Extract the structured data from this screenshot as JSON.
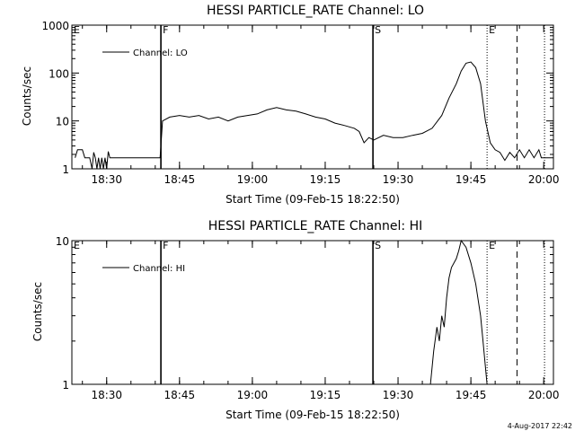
{
  "chart_data": [
    {
      "type": "line",
      "title": "HESSI PARTICLE_RATE Channel: LO",
      "xlabel": "Start Time (09-Feb-15 18:22:50)",
      "ylabel": "Counts/sec",
      "x_unit": "time (HH:MM, 09-Feb-15)",
      "xlim": [
        "18:22:50",
        "20:02:00"
      ],
      "ylim": [
        1,
        1000
      ],
      "yscale": "log",
      "x_ticks": [
        "18:30",
        "18:45",
        "19:00",
        "19:15",
        "19:30",
        "19:45",
        "20:00"
      ],
      "y_ticks": [
        {
          "value": 1,
          "label": "1"
        },
        {
          "value": 10,
          "label": "10"
        },
        {
          "value": 100,
          "label": "100"
        },
        {
          "value": 1000,
          "label": "1000"
        }
      ],
      "legend": {
        "position": "top-left",
        "entries": [
          "Channel: LO"
        ]
      },
      "markers": [
        {
          "label": "E",
          "time": "18:22:50",
          "style": "solid"
        },
        {
          "label": "F",
          "time": "18:41:10",
          "style": "solid"
        },
        {
          "label": "S",
          "time": "19:24:50",
          "style": "solid"
        },
        {
          "label": "E",
          "time": "19:48:20",
          "style": "dotted"
        },
        {
          "label": "",
          "time": "19:54:30",
          "style": "dashed"
        },
        {
          "label": "",
          "time": "20:00:10",
          "style": "dotted"
        }
      ],
      "series": [
        {
          "name": "Channel: LO",
          "points": [
            [
              "18:23:30",
              1.7
            ],
            [
              "18:24:00",
              2.5
            ],
            [
              "18:25:00",
              2.5
            ],
            [
              "18:25:30",
              1.7
            ],
            [
              "18:26:30",
              1.7
            ],
            [
              "18:27:00",
              1.0
            ],
            [
              "18:27:20",
              2.2
            ],
            [
              "18:27:40",
              1.7
            ],
            [
              "18:28:00",
              1.0
            ],
            [
              "18:28:20",
              1.7
            ],
            [
              "18:28:40",
              1.0
            ],
            [
              "18:29:00",
              1.7
            ],
            [
              "18:29:20",
              1.0
            ],
            [
              "18:29:40",
              1.7
            ],
            [
              "18:30:00",
              1.0
            ],
            [
              "18:30:20",
              2.3
            ],
            [
              "18:30:40",
              1.7
            ],
            [
              "18:41:00",
              1.7
            ],
            [
              "18:41:30",
              10
            ],
            [
              "18:43:00",
              12
            ],
            [
              "18:45:00",
              13
            ],
            [
              "18:47:00",
              12
            ],
            [
              "18:49:00",
              13
            ],
            [
              "18:51:00",
              11
            ],
            [
              "18:53:00",
              12
            ],
            [
              "18:55:00",
              10
            ],
            [
              "18:57:00",
              12
            ],
            [
              "18:59:00",
              13
            ],
            [
              "19:01:00",
              14
            ],
            [
              "19:03:00",
              17
            ],
            [
              "19:05:00",
              19
            ],
            [
              "19:07:00",
              17
            ],
            [
              "19:09:00",
              16
            ],
            [
              "19:11:00",
              14
            ],
            [
              "19:13:00",
              12
            ],
            [
              "19:15:00",
              11
            ],
            [
              "19:17:00",
              9
            ],
            [
              "19:19:00",
              8
            ],
            [
              "19:21:00",
              7
            ],
            [
              "19:22:00",
              6
            ],
            [
              "19:23:00",
              3.5
            ],
            [
              "19:24:00",
              4.5
            ],
            [
              "19:25:00",
              4
            ],
            [
              "19:27:00",
              5
            ],
            [
              "19:29:00",
              4.5
            ],
            [
              "19:31:00",
              4.5
            ],
            [
              "19:33:00",
              5
            ],
            [
              "19:35:00",
              5.5
            ],
            [
              "19:37:00",
              7
            ],
            [
              "19:39:00",
              13
            ],
            [
              "19:40:30",
              30
            ],
            [
              "19:42:00",
              60
            ],
            [
              "19:43:00",
              110
            ],
            [
              "19:44:00",
              160
            ],
            [
              "19:45:00",
              170
            ],
            [
              "19:46:00",
              130
            ],
            [
              "19:47:00",
              60
            ],
            [
              "19:48:00",
              10
            ],
            [
              "19:49:00",
              3.5
            ],
            [
              "19:50:00",
              2.5
            ],
            [
              "19:51:00",
              2.2
            ],
            [
              "19:52:00",
              1.5
            ],
            [
              "19:53:00",
              2.2
            ],
            [
              "19:54:00",
              1.7
            ],
            [
              "19:55:00",
              2.5
            ],
            [
              "19:56:00",
              1.7
            ],
            [
              "19:57:00",
              2.5
            ],
            [
              "19:58:00",
              1.7
            ],
            [
              "19:59:00",
              2.5
            ],
            [
              "19:59:30",
              1.7
            ],
            [
              "20:02:00",
              1.7
            ]
          ]
        }
      ]
    },
    {
      "type": "line",
      "title": "HESSI PARTICLE_RATE Channel: HI",
      "xlabel": "Start Time (09-Feb-15 18:22:50)",
      "ylabel": "Counts/sec",
      "x_unit": "time (HH:MM, 09-Feb-15)",
      "xlim": [
        "18:22:50",
        "20:02:00"
      ],
      "ylim": [
        1,
        10
      ],
      "yscale": "log",
      "x_ticks": [
        "18:30",
        "18:45",
        "19:00",
        "19:15",
        "19:30",
        "19:45",
        "20:00"
      ],
      "y_ticks": [
        {
          "value": 1,
          "label": "1"
        },
        {
          "value": 10,
          "label": "10"
        }
      ],
      "legend": {
        "position": "top-left",
        "entries": [
          "Channel: HI"
        ]
      },
      "markers": [
        {
          "label": "E",
          "time": "18:22:50",
          "style": "solid"
        },
        {
          "label": "F",
          "time": "18:41:10",
          "style": "solid"
        },
        {
          "label": "S",
          "time": "19:24:50",
          "style": "solid"
        },
        {
          "label": "E",
          "time": "19:48:20",
          "style": "dotted"
        },
        {
          "label": "",
          "time": "19:54:30",
          "style": "dashed"
        },
        {
          "label": "",
          "time": "20:00:10",
          "style": "dotted"
        }
      ],
      "series": [
        {
          "name": "Channel: HI",
          "points": [
            [
              "19:36:40",
              1.0
            ],
            [
              "19:37:20",
              1.7
            ],
            [
              "19:38:00",
              2.5
            ],
            [
              "19:38:30",
              2.0
            ],
            [
              "19:39:00",
              3.0
            ],
            [
              "19:39:30",
              2.5
            ],
            [
              "19:40:00",
              4.0
            ],
            [
              "19:40:30",
              5.5
            ],
            [
              "19:41:00",
              6.5
            ],
            [
              "19:42:00",
              7.5
            ],
            [
              "19:42:30",
              8.5
            ],
            [
              "19:43:00",
              10
            ],
            [
              "19:44:00",
              9
            ],
            [
              "19:45:00",
              7
            ],
            [
              "19:46:00",
              5
            ],
            [
              "19:47:00",
              3
            ],
            [
              "19:47:30",
              2
            ],
            [
              "19:48:20",
              1.0
            ]
          ]
        }
      ]
    }
  ],
  "timestamp": "4-Aug-2017 22:42"
}
